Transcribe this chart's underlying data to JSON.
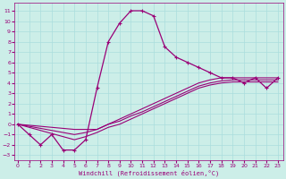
{
  "xlabel": "Windchill (Refroidissement éolien,°C)",
  "background_color": "#cceee8",
  "grid_color": "#aadddd",
  "line_color": "#990077",
  "x_ticks": [
    0,
    1,
    2,
    3,
    4,
    5,
    6,
    7,
    8,
    9,
    10,
    11,
    12,
    13,
    14,
    15,
    16,
    17,
    18,
    19,
    20,
    21,
    22,
    23
  ],
  "y_ticks": [
    -3,
    -2,
    -1,
    0,
    1,
    2,
    3,
    4,
    5,
    6,
    7,
    8,
    9,
    10,
    11
  ],
  "xlim": [
    -0.3,
    23.5
  ],
  "ylim": [
    -3.5,
    11.8
  ],
  "curve1_x": [
    0,
    1,
    2,
    3,
    4,
    5,
    6,
    7,
    8,
    9,
    10,
    11,
    12,
    13,
    14,
    15,
    16,
    17,
    18,
    19,
    20,
    21,
    22,
    23
  ],
  "curve1_y": [
    0,
    -1,
    -2,
    -1,
    -2.5,
    -2.5,
    -1.5,
    3.5,
    8.0,
    9.8,
    11.0,
    11.0,
    10.5,
    7.5,
    6.5,
    6.0,
    5.5,
    5.0,
    4.5,
    4.5,
    4.0,
    4.5,
    3.5,
    4.5
  ],
  "curve2_x": [
    0,
    5,
    6,
    7,
    8,
    9,
    10,
    11,
    12,
    13,
    14,
    15,
    16,
    17,
    18,
    19,
    20,
    21,
    22,
    23
  ],
  "curve2_y": [
    0,
    -0.5,
    -0.5,
    -0.5,
    0.0,
    0.5,
    1.0,
    1.5,
    2.0,
    2.5,
    3.0,
    3.5,
    4.0,
    4.3,
    4.5,
    4.5,
    4.5,
    4.5,
    4.5,
    4.5
  ],
  "curve3_x": [
    0,
    5,
    6,
    7,
    8,
    9,
    10,
    11,
    12,
    13,
    14,
    15,
    16,
    17,
    18,
    19,
    20,
    21,
    22,
    23
  ],
  "curve3_y": [
    0,
    -1.0,
    -0.8,
    -0.5,
    0.0,
    0.3,
    0.8,
    1.2,
    1.7,
    2.2,
    2.7,
    3.2,
    3.7,
    4.0,
    4.2,
    4.3,
    4.3,
    4.3,
    4.3,
    4.3
  ],
  "curve4_x": [
    0,
    5,
    6,
    7,
    8,
    9,
    10,
    11,
    12,
    13,
    14,
    15,
    16,
    17,
    18,
    19,
    20,
    21,
    22,
    23
  ],
  "curve4_y": [
    0,
    -1.5,
    -1.2,
    -0.8,
    -0.3,
    0.0,
    0.5,
    1.0,
    1.5,
    2.0,
    2.5,
    3.0,
    3.5,
    3.8,
    4.0,
    4.1,
    4.1,
    4.1,
    4.1,
    4.1
  ]
}
